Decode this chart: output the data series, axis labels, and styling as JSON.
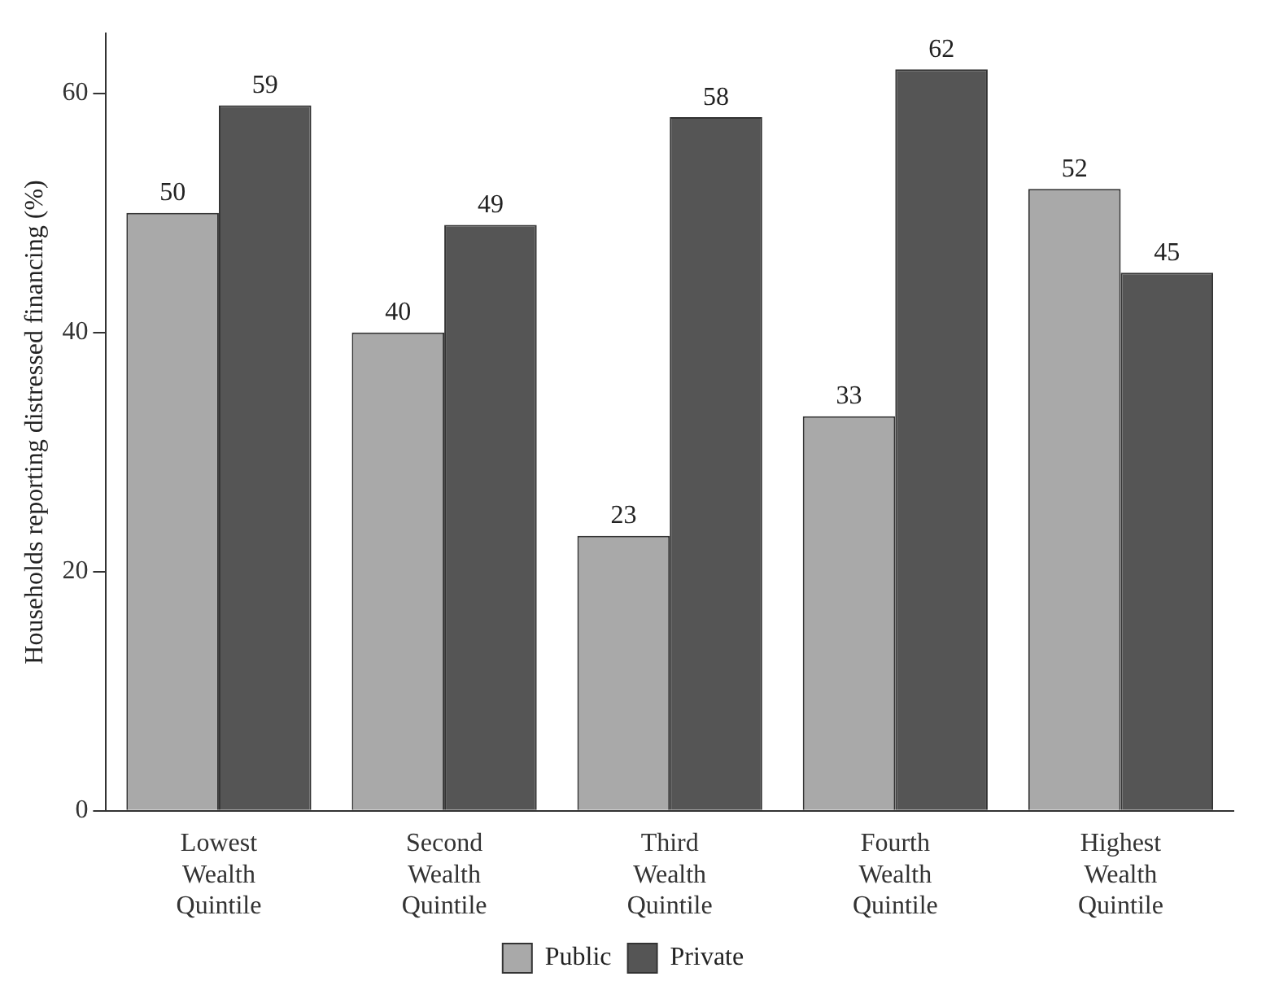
{
  "chart_data": {
    "type": "bar",
    "ylabel": "Households reporting distressed financing (%)",
    "categories": [
      "Lowest Wealth Quintile",
      "Second Wealth Quintile",
      "Third Wealth Quintile",
      "Fourth Wealth Quintile",
      "Highest Wealth Quintile"
    ],
    "series": [
      {
        "name": "Public",
        "color": "#a9a9a9",
        "values": [
          50,
          40,
          23,
          33,
          52
        ]
      },
      {
        "name": "Private",
        "color": "#555555",
        "values": [
          59,
          49,
          58,
          62,
          45
        ]
      }
    ],
    "ylim": [
      0,
      65
    ],
    "yticks": [
      0,
      20,
      40,
      60
    ],
    "grid": false,
    "legend": "bottom",
    "data_labels": true
  }
}
